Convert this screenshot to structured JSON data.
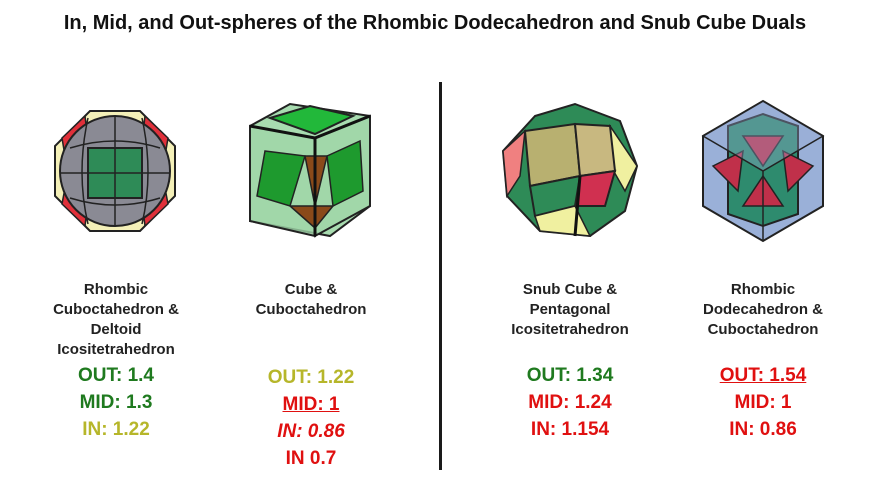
{
  "title": "In, Mid, and Out-spheres of the Rhombic Dodecahedron and Snub Cube Duals",
  "items": [
    {
      "name": "Rhombic\nCuboctahedron &\nDeltoid\nIcositetrahedron",
      "values": [
        "OUT: 1.4",
        "MID: 1.3",
        "IN: 1.22"
      ],
      "colors": [
        "#1f7a1f",
        "#1f7a1f",
        "#b6b62a"
      ]
    },
    {
      "name": "Cube &\nCuboctahedron",
      "values": [
        "OUT: 1.22",
        "MID: 1",
        "IN: 0.86",
        "IN 0.7"
      ],
      "colors": [
        "#b6b62a",
        "#e01010",
        "#e01010",
        "#e01010"
      ]
    },
    {
      "name": "Snub Cube &\nPentagonal\nIcositetrahedron",
      "values": [
        "OUT: 1.34",
        "MID: 1.24",
        "IN: 1.154"
      ],
      "colors": [
        "#1f7a1f",
        "#e01010",
        "#e01010"
      ]
    },
    {
      "name": "Rhombic\nDodecahedron &\nCuboctahedron",
      "values": [
        "OUT: 1.54",
        "MID: 1",
        "IN: 0.86"
      ],
      "colors": [
        "#e01010",
        "#e01010",
        "#e01010"
      ]
    }
  ]
}
